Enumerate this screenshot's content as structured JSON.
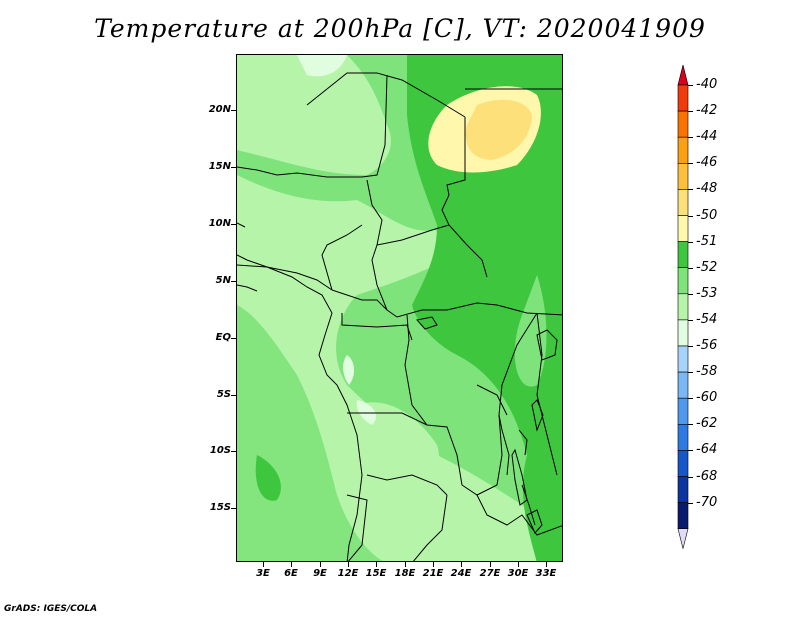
{
  "title": "Temperature at 200hPa [C], VT: 2020041909",
  "credit": "GrADS: IGES/COLA",
  "map": {
    "lat_labels": [
      "20N",
      "15N",
      "10N",
      "5N",
      "EQ",
      "5S",
      "10S",
      "15S"
    ],
    "lon_labels": [
      "3E",
      "6E",
      "9E",
      "12E",
      "15E",
      "18E",
      "21E",
      "24E",
      "27E",
      "30E",
      "33E"
    ],
    "field_colors": {
      "lt_-54": "#e0fde0",
      "-54_-53": "#b6f5a9",
      "-53_-52": "#7ee37a",
      "-52_-51": "#3fc63f",
      "-51_-50": "#fff8ac",
      "-50_-48": "#fde07a"
    }
  },
  "colorbar": {
    "levels": [
      "-40",
      "-42",
      "-44",
      "-46",
      "-48",
      "-50",
      "-51",
      "-52",
      "-53",
      "-54",
      "-56",
      "-58",
      "-60",
      "-62",
      "-64",
      "-68",
      "-70"
    ],
    "colors": [
      "#d7001e",
      "#f03b0a",
      "#fa7200",
      "#fb9f14",
      "#fdbf3c",
      "#fde07a",
      "#fff8ac",
      "#3fc63f",
      "#7ee37a",
      "#b6f5a9",
      "#e0fde0",
      "#a6d3fa",
      "#7cb7f5",
      "#5199ed",
      "#2d7ae2",
      "#1656c8",
      "#0b36a0",
      "#0a1a6e",
      "#e0dcf7"
    ]
  }
}
